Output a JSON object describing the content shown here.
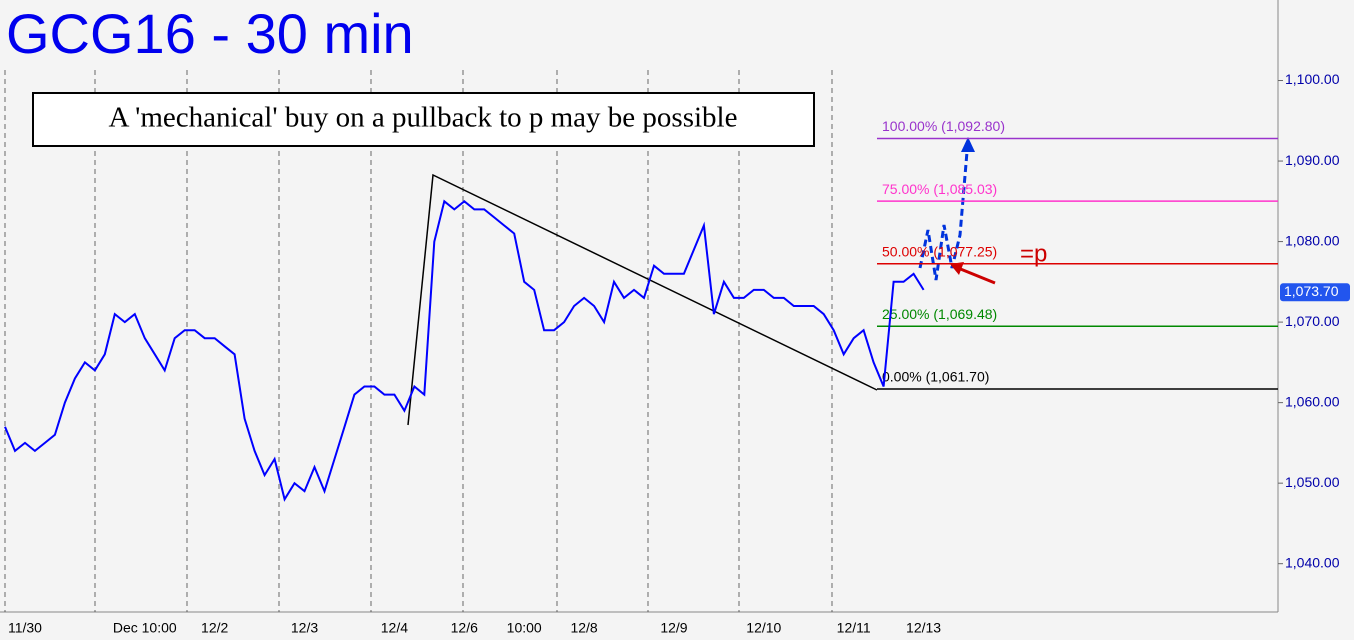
{
  "chart_data": {
    "type": "line",
    "title": "GCG16 - 30 min",
    "annotation": "A 'mechanical' buy on a pullback to p may be possible",
    "marker_label": "=p",
    "categories": [
      null,
      null,
      "11/30",
      null,
      null,
      null,
      null,
      null,
      null,
      null,
      null,
      null,
      null,
      null,
      "Dec 10:00",
      null,
      null,
      null,
      null,
      null,
      null,
      "12/2",
      null,
      null,
      null,
      null,
      null,
      null,
      null,
      null,
      "12/3",
      null,
      null,
      null,
      null,
      null,
      null,
      null,
      null,
      "12/4",
      null,
      null,
      null,
      null,
      null,
      null,
      "12/6",
      null,
      null,
      null,
      null,
      null,
      "10:00",
      null,
      null,
      null,
      null,
      null,
      "12/8",
      null,
      null,
      null,
      null,
      null,
      null,
      null,
      null,
      "12/9",
      null,
      null,
      null,
      null,
      null,
      null,
      null,
      null,
      "12/10",
      null,
      null,
      null,
      null,
      null,
      null,
      null,
      null,
      "12/11",
      null,
      null,
      null,
      null,
      null,
      null,
      "12/13",
      null,
      null,
      null,
      null,
      null,
      null,
      null,
      null,
      null,
      null,
      null,
      null,
      null,
      null,
      null,
      null,
      null,
      null,
      null,
      null,
      null,
      null,
      null,
      null,
      null,
      null,
      null,
      null,
      null,
      null,
      null,
      null,
      null,
      null,
      null
    ],
    "series": [
      {
        "color": "#0000ff",
        "values": [
          1057,
          1054,
          1055,
          1054,
          1055,
          1056,
          1060,
          1063,
          1065,
          1064,
          1066,
          1071,
          1070,
          1071,
          1068,
          1066,
          1064,
          1068,
          1069,
          1069,
          1068,
          1068,
          1067,
          1066,
          1058,
          1054,
          1051,
          1053,
          1048,
          1050,
          1049,
          1052,
          1049,
          1053,
          1057,
          1061,
          1062,
          1062,
          1061,
          1061,
          1059,
          1062,
          1061,
          1080,
          1085,
          1084,
          1085,
          1084,
          1084,
          1083,
          1082,
          1081,
          1075,
          1074,
          1069,
          1069,
          1070,
          1072,
          1073,
          1072,
          1070,
          1075,
          1073,
          1074,
          1073,
          1077,
          1076,
          1076,
          1076,
          1079,
          1082,
          1071,
          1075,
          1073,
          1073,
          1074,
          1074,
          1073,
          1073,
          1072,
          1072,
          1072,
          1071,
          1069,
          1066,
          1068,
          1069,
          1065,
          1062,
          1075,
          1075,
          1076,
          1074,
          null,
          null,
          null,
          null,
          null,
          null,
          null,
          null,
          null,
          null,
          null,
          null,
          null,
          null,
          null,
          null,
          null,
          null,
          null,
          null,
          null,
          null,
          null,
          null,
          null,
          null,
          null,
          null,
          null,
          null,
          null,
          null,
          null,
          null,
          null
        ]
      }
    ],
    "ylim": [
      1034,
      1110
    ],
    "yticks": [
      {
        "value": 1040,
        "label": "1,040.00"
      },
      {
        "value": 1050,
        "label": "1,050.00"
      },
      {
        "value": 1060,
        "label": "1,060.00"
      },
      {
        "value": 1070,
        "label": "1,070.00"
      },
      {
        "value": 1080,
        "label": "1,080.00"
      },
      {
        "value": 1090,
        "label": "1,090.00"
      },
      {
        "value": 1100,
        "label": "1,100.00"
      }
    ],
    "last_price": {
      "value": 1073.7,
      "label": "1,073.70"
    },
    "fib_levels": [
      {
        "value": 1092.8,
        "label": "100.00% (1,092.80)",
        "color": "#9933cc"
      },
      {
        "value": 1085.03,
        "label": "75.00% (1,085.03)",
        "color": "#ff33cc"
      },
      {
        "value": 1077.25,
        "label": "50.00% (1,077.25)",
        "color": "#dd0000"
      },
      {
        "value": 1069.48,
        "label": "25.00% (1,069.48)",
        "color": "#008800"
      },
      {
        "value": 1061.7,
        "label": "0.00% (1,061.70)",
        "color": "#000000"
      }
    ]
  }
}
